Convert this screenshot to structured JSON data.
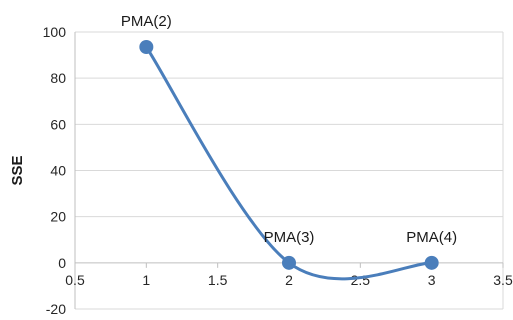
{
  "chart_data": {
    "type": "scatter",
    "title": "",
    "xlabel": "",
    "ylabel": "SSE",
    "xlim": [
      0.5,
      3.5
    ],
    "ylim": [
      -20,
      100
    ],
    "xticks": [
      0.5,
      1,
      1.5,
      2,
      2.5,
      3,
      3.5
    ],
    "yticks": [
      -20,
      0,
      20,
      40,
      60,
      80,
      100
    ],
    "grid": "horizontal",
    "smoothed_line": true,
    "series": [
      {
        "color": "#4a7ebb",
        "points": [
          {
            "x": 1,
            "y": 93.5,
            "label": "PMA(2)"
          },
          {
            "x": 2,
            "y": 0,
            "label": "PMA(3)"
          },
          {
            "x": 3,
            "y": 0,
            "label": "PMA(4)"
          }
        ]
      }
    ]
  }
}
